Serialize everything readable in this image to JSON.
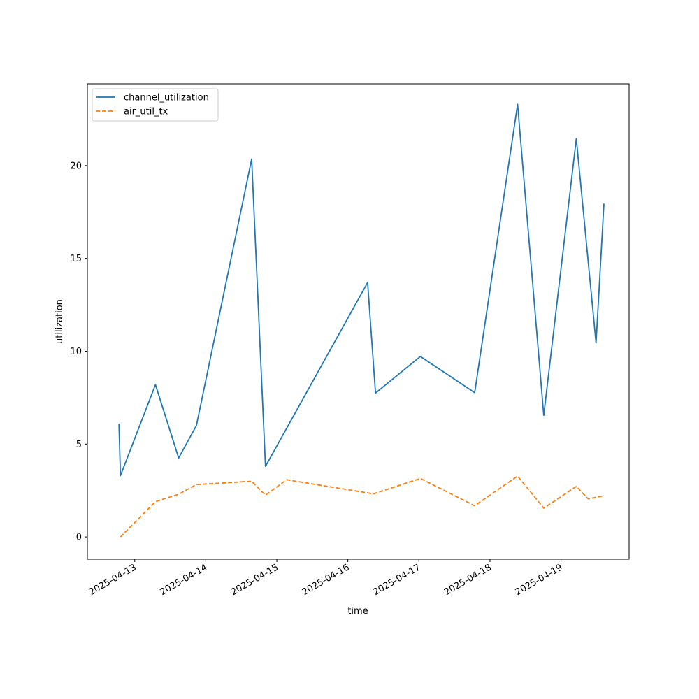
{
  "chart_data": {
    "type": "line",
    "xlabel": "time",
    "ylabel": "utilization",
    "xlim": [
      "2025-04-12T08:00",
      "2025-04-19T23:00"
    ],
    "ylim": [
      -1.2,
      24.4
    ],
    "x_ticks": [
      "2025-04-13",
      "2025-04-14",
      "2025-04-15",
      "2025-04-16",
      "2025-04-17",
      "2025-04-18",
      "2025-04-19"
    ],
    "y_ticks": [
      0,
      5,
      10,
      15,
      20
    ],
    "grid": false,
    "legend": "top-left",
    "series": [
      {
        "name": "channel_utilization",
        "color": "#1f77b4",
        "style": "solid",
        "points": [
          {
            "x": "2025-04-12T18:40",
            "y": 6.1
          },
          {
            "x": "2025-04-12T19:10",
            "y": 3.3
          },
          {
            "x": "2025-04-13T07:00",
            "y": 8.2
          },
          {
            "x": "2025-04-13T14:50",
            "y": 4.25
          },
          {
            "x": "2025-04-13T20:50",
            "y": 6.0
          },
          {
            "x": "2025-04-14T15:30",
            "y": 20.35
          },
          {
            "x": "2025-04-14T20:10",
            "y": 3.8
          },
          {
            "x": "2025-04-16T06:40",
            "y": 13.7
          },
          {
            "x": "2025-04-16T09:20",
            "y": 7.75
          },
          {
            "x": "2025-04-17T00:30",
            "y": 9.72
          },
          {
            "x": "2025-04-17T18:50",
            "y": 7.77
          },
          {
            "x": "2025-04-18T09:20",
            "y": 23.3
          },
          {
            "x": "2025-04-18T18:10",
            "y": 6.55
          },
          {
            "x": "2025-04-19T05:10",
            "y": 21.45
          },
          {
            "x": "2025-04-19T11:50",
            "y": 10.45
          },
          {
            "x": "2025-04-19T14:30",
            "y": 17.95
          }
        ]
      },
      {
        "name": "air_util_tx",
        "color": "#ff7f0e",
        "style": "dashed",
        "points": [
          {
            "x": "2025-04-12T19:10",
            "y": 0.0
          },
          {
            "x": "2025-04-13T07:00",
            "y": 1.9
          },
          {
            "x": "2025-04-13T14:50",
            "y": 2.3
          },
          {
            "x": "2025-04-13T20:50",
            "y": 2.82
          },
          {
            "x": "2025-04-14T15:30",
            "y": 3.0
          },
          {
            "x": "2025-04-14T20:10",
            "y": 2.25
          },
          {
            "x": "2025-04-15T03:20",
            "y": 3.08
          },
          {
            "x": "2025-04-16T08:40",
            "y": 2.32
          },
          {
            "x": "2025-04-17T00:30",
            "y": 3.15
          },
          {
            "x": "2025-04-17T18:50",
            "y": 1.68
          },
          {
            "x": "2025-04-18T09:20",
            "y": 3.28
          },
          {
            "x": "2025-04-18T18:10",
            "y": 1.55
          },
          {
            "x": "2025-04-19T05:10",
            "y": 2.72
          },
          {
            "x": "2025-04-19T09:10",
            "y": 2.05
          },
          {
            "x": "2025-04-19T14:30",
            "y": 2.22
          }
        ]
      }
    ]
  }
}
